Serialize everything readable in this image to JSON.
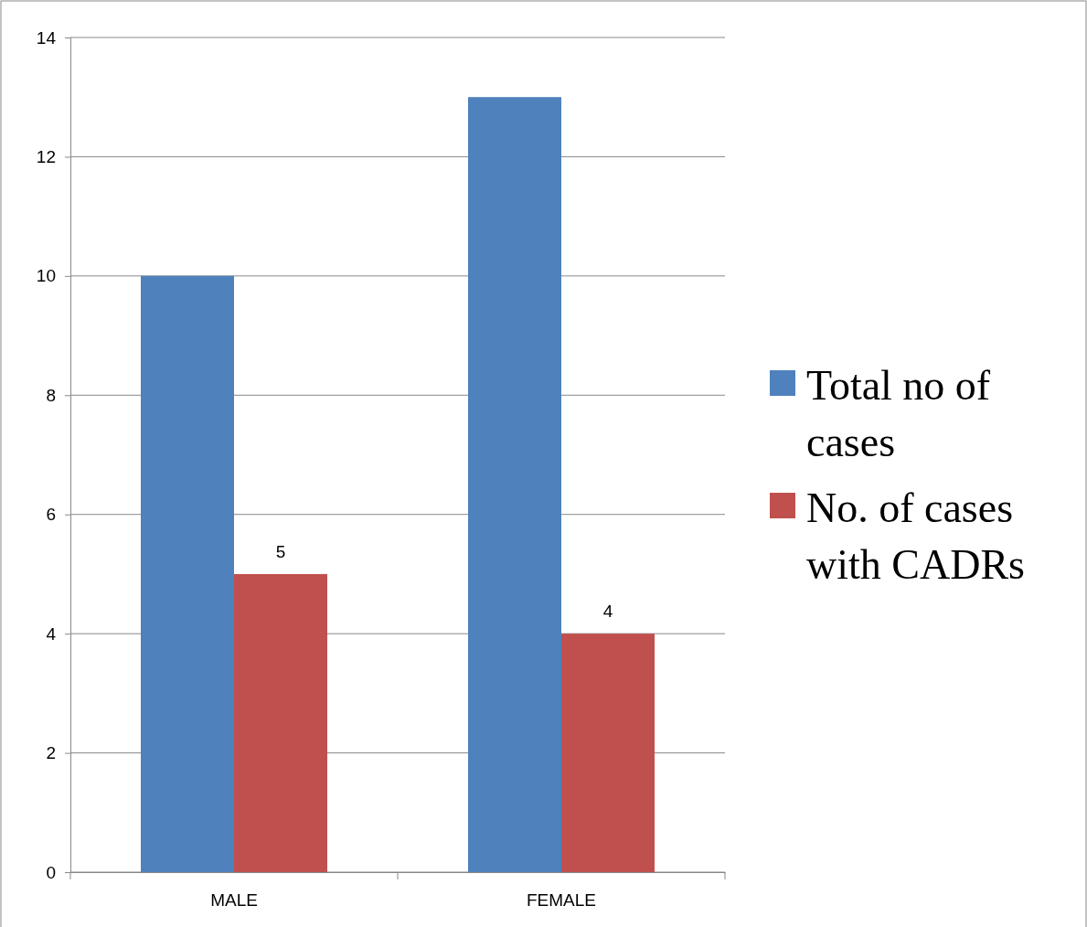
{
  "chart_data": {
    "type": "bar",
    "categories": [
      "MALE",
      "FEMALE"
    ],
    "series": [
      {
        "name": "Total no of cases",
        "color": "#4f81bd",
        "values": [
          10,
          13
        ]
      },
      {
        "name": "No. of cases with CADRs",
        "color": "#c0504d",
        "values": [
          5,
          4
        ],
        "value_labels": [
          "5",
          "4"
        ]
      }
    ],
    "ylim": [
      0,
      14
    ],
    "yticks": [
      0,
      2,
      4,
      6,
      8,
      10,
      12,
      14
    ],
    "grid": "y",
    "legend": "right"
  }
}
